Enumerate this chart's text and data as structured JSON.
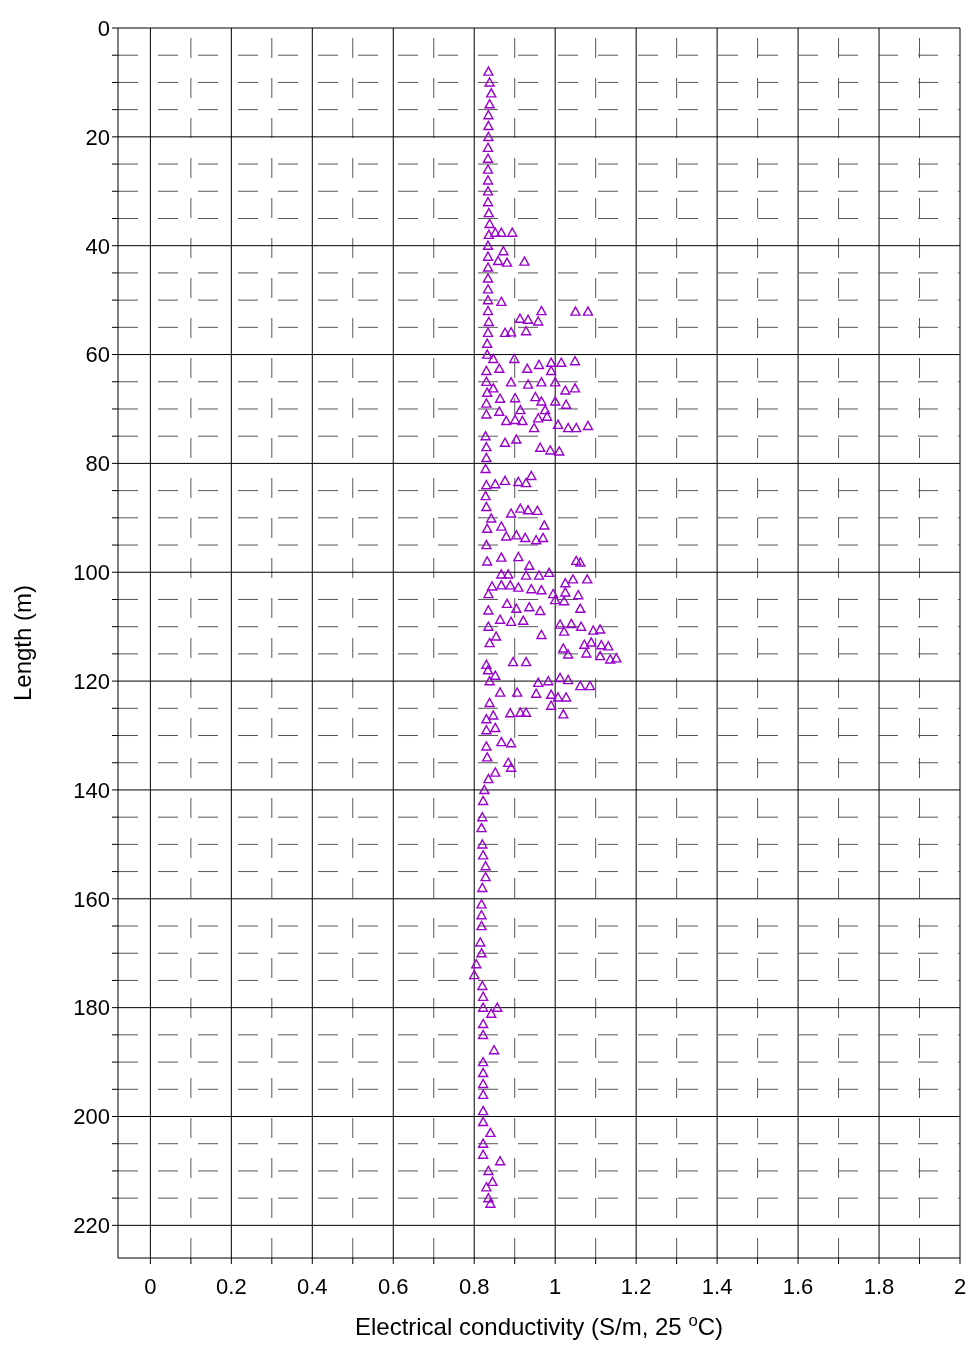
{
  "chart_data": {
    "type": "scatter",
    "xlabel": "Electrical conductivity (S/m, 25 $^{o}$C)",
    "ylabel": "Length (m)",
    "xlim": [
      -0.08,
      2
    ],
    "ylim": [
      226,
      0
    ],
    "xticks": [
      0,
      {
        "value": 0.1,
        "label": null
      },
      {
        "value": 0.2,
        "label": "0.2"
      },
      {
        "value": 0.3,
        "label": null
      },
      {
        "value": 0.4,
        "label": "0.4"
      },
      {
        "value": 0.5,
        "label": null
      },
      {
        "value": 0.6,
        "label": "0.6"
      },
      {
        "value": 0.7,
        "label": null
      },
      {
        "value": 0.8,
        "label": "0.8"
      },
      {
        "value": 0.9,
        "label": null
      },
      1,
      {
        "value": 1.1,
        "label": null
      },
      {
        "value": 1.2,
        "label": "1.2"
      },
      {
        "value": 1.3,
        "label": null
      },
      {
        "value": 1.4,
        "label": "1.4"
      },
      {
        "value": 1.5,
        "label": null
      },
      {
        "value": 1.6,
        "label": "1.6"
      },
      {
        "value": 1.7,
        "label": null
      },
      {
        "value": 1.8,
        "label": "1.8"
      },
      {
        "value": 1.9,
        "label": null
      },
      2
    ],
    "yticks": [
      0,
      {
        "value": 5,
        "label": null
      },
      {
        "value": 10,
        "label": null
      },
      {
        "value": 15,
        "label": null
      },
      20,
      {
        "value": 25,
        "label": null
      },
      {
        "value": 30,
        "label": null
      },
      {
        "value": 35,
        "label": null
      },
      40,
      {
        "value": 45,
        "label": null
      },
      {
        "value": 50,
        "label": null
      },
      {
        "value": 55,
        "label": null
      },
      60,
      {
        "value": 65,
        "label": null
      },
      {
        "value": 70,
        "label": null
      },
      {
        "value": 75,
        "label": null
      },
      80,
      {
        "value": 85,
        "label": null
      },
      {
        "value": 90,
        "label": null
      },
      {
        "value": 95,
        "label": null
      },
      100,
      {
        "value": 105,
        "label": null
      },
      {
        "value": 110,
        "label": null
      },
      {
        "value": 115,
        "label": null
      },
      120,
      {
        "value": 125,
        "label": null
      },
      {
        "value": 130,
        "label": null
      },
      {
        "value": 135,
        "label": null
      },
      140,
      {
        "value": 145,
        "label": null
      },
      {
        "value": 150,
        "label": null
      },
      {
        "value": 155,
        "label": null
      },
      160,
      {
        "value": 165,
        "label": null
      },
      {
        "value": 170,
        "label": null
      },
      {
        "value": 175,
        "label": null
      },
      180,
      {
        "value": 185,
        "label": null
      },
      {
        "value": 190,
        "label": null
      },
      {
        "value": 195,
        "label": null
      },
      200,
      {
        "value": 205,
        "label": null
      },
      {
        "value": 210,
        "label": null
      },
      {
        "value": 215,
        "label": null
      },
      220
    ],
    "grid": true,
    "marker": "triangle",
    "series": [
      {
        "color": "#9900cc",
        "x": [
          0.835,
          0.838,
          0.842,
          0.838,
          0.835,
          0.835,
          0.835,
          0.834,
          0.834,
          0.834,
          0.834,
          0.834,
          0.834,
          0.836,
          0.838,
          0.836,
          0.834,
          0.834,
          0.834,
          0.834,
          0.834,
          0.834,
          0.834,
          0.836,
          0.834,
          0.832,
          0.832,
          0.83,
          0.83,
          0.832,
          0.83,
          0.83,
          0.828,
          0.83,
          0.83,
          0.828,
          0.83,
          0.828,
          0.83,
          0.832,
          0.83,
          0.832,
          0.835,
          0.835,
          0.835,
          0.838,
          0.83,
          0.834,
          0.838,
          0.838,
          0.83,
          0.83,
          0.83,
          0.832,
          0.835,
          0.825,
          0.822,
          0.82,
          0.818,
          0.82,
          0.822,
          0.828,
          0.828,
          0.82,
          0.818,
          0.818,
          0.818,
          0.815,
          0.818,
          0.805,
          0.8,
          0.82,
          0.822,
          0.822,
          0.822,
          0.822,
          0.822,
          0.822,
          0.822,
          0.822,
          0.822,
          0.822,
          0.822,
          0.822,
          0.835,
          0.845,
          0.83,
          0.835,
          0.84,
          0.852,
          0.867,
          0.894,
          0.872,
          0.859,
          0.881,
          0.924,
          0.867,
          0.966,
          1.05,
          1.081,
          0.913,
          0.933,
          0.958,
          0.876,
          0.891,
          0.928,
          0.847,
          0.899,
          0.99,
          1.015,
          1.049,
          0.862,
          0.931,
          0.96,
          0.99,
          0.891,
          0.966,
          1.0,
          0.933,
          0.847,
          1.025,
          1.049,
          0.951,
          0.864,
          0.901,
          1.0,
          0.966,
          0.862,
          0.914,
          0.975,
          1.027,
          0.879,
          0.901,
          0.919,
          0.948,
          0.958,
          0.98,
          1.007,
          1.032,
          1.052,
          1.081,
          0.876,
          0.904,
          0.963,
          0.988,
          1.01,
          0.852,
          0.876,
          0.909,
          0.941,
          0.928,
          0.842,
          0.891,
          0.914,
          0.933,
          0.956,
          0.973,
          0.867,
          0.879,
          0.904,
          0.926,
          0.953,
          0.97,
          0.867,
          0.909,
          0.936,
          1.052,
          1.062,
          0.867,
          0.884,
          0.928,
          0.96,
          0.985,
          1.025,
          1.044,
          1.079,
          0.844,
          0.867,
          0.889,
          0.909,
          0.941,
          0.966,
          0.995,
          1.025,
          1.057,
          0.881,
          0.904,
          0.936,
          0.963,
          1.0,
          1.022,
          1.062,
          0.864,
          0.891,
          0.921,
          0.966,
          1.012,
          1.04,
          1.064,
          1.094,
          1.111,
          1.022,
          0.854,
          1.02,
          1.072,
          1.089,
          1.114,
          1.131,
          1.077,
          1.111,
          1.151,
          1.136,
          1.032,
          0.852,
          0.896,
          0.928,
          0.958,
          0.983,
          1.012,
          1.032,
          1.062,
          1.086,
          0.864,
          0.906,
          0.953,
          0.99,
          1.007,
          1.027,
          0.99,
          1.02,
          0.889,
          0.914,
          0.928,
          0.847,
          0.852,
          0.867,
          0.891,
          0.884,
          0.891,
          0.852,
          0.857,
          0.842,
          0.849,
          0.84,
          0.864
        ],
        "values": [
          8,
          10,
          12,
          14,
          16,
          18,
          20,
          22,
          24,
          26,
          28,
          30,
          32,
          34,
          36,
          38,
          40,
          42,
          44,
          46,
          48,
          50,
          52,
          54,
          56,
          58,
          60,
          63,
          65,
          67,
          69,
          71,
          75,
          77,
          79,
          81,
          84,
          86,
          88,
          92,
          95,
          98,
          104,
          107,
          110,
          113,
          117,
          118,
          120,
          124,
          127,
          129,
          132,
          134,
          138,
          140,
          142,
          145,
          147,
          150,
          152,
          154,
          156,
          158,
          161,
          163,
          165,
          168,
          170,
          172,
          174,
          176,
          178,
          180,
          183,
          185,
          190,
          192,
          194,
          196,
          199,
          201,
          205,
          207,
          210,
          212,
          213,
          215,
          216,
          37.6,
          37.6,
          37.6,
          41,
          42.8,
          43.1,
          42.9,
          50.3,
          52,
          52.1,
          52.1,
          53.4,
          53.6,
          53.9,
          56,
          55.9,
          55.7,
          60.8,
          60.8,
          61.5,
          61.5,
          61.2,
          62.6,
          62.6,
          61.9,
          63,
          65.1,
          65.1,
          65.1,
          65.5,
          66.2,
          66.6,
          66.2,
          67.8,
          68.1,
          68,
          68.6,
          68.6,
          70.5,
          70.2,
          70.2,
          69.2,
          72.2,
          72,
          72.2,
          73.5,
          71.7,
          71.4,
          72.9,
          73.5,
          73.5,
          73.1,
          76.2,
          75.6,
          77.1,
          77.6,
          77.8,
          83.8,
          83.2,
          83.4,
          82.3,
          83.6,
          90.1,
          89.2,
          88.3,
          88.6,
          88.7,
          91.4,
          91.6,
          93.4,
          93.2,
          93.7,
          94.1,
          93.7,
          97.3,
          97.2,
          98.8,
          97.9,
          98.2,
          100.4,
          100.4,
          100.6,
          100.6,
          100.1,
          102,
          101.3,
          101.3,
          102.6,
          102.4,
          102.4,
          102.8,
          103.1,
          103.3,
          104,
          103.7,
          104.2,
          105.8,
          106.7,
          106.4,
          107.1,
          105.1,
          105.3,
          106.7,
          108.7,
          109.1,
          108.9,
          111.5,
          109.6,
          109.5,
          110,
          110.7,
          110.5,
          110.9,
          111.8,
          114,
          113.3,
          112.9,
          113.4,
          113.6,
          114.9,
          115.4,
          115.8,
          116,
          115.1,
          119,
          116.5,
          116.5,
          120.3,
          120,
          119.4,
          119.8,
          120.9,
          120.9,
          122.1,
          122.1,
          122.3,
          122.5,
          123,
          123,
          124.5,
          126.1,
          125.9,
          125.8,
          125.8,
          126.3,
          128.6,
          131.2,
          131.4,
          135,
          135.9,
          136.8,
          180,
          181.1,
          187.8,
          203,
          208.2
        ]
      }
    ]
  }
}
